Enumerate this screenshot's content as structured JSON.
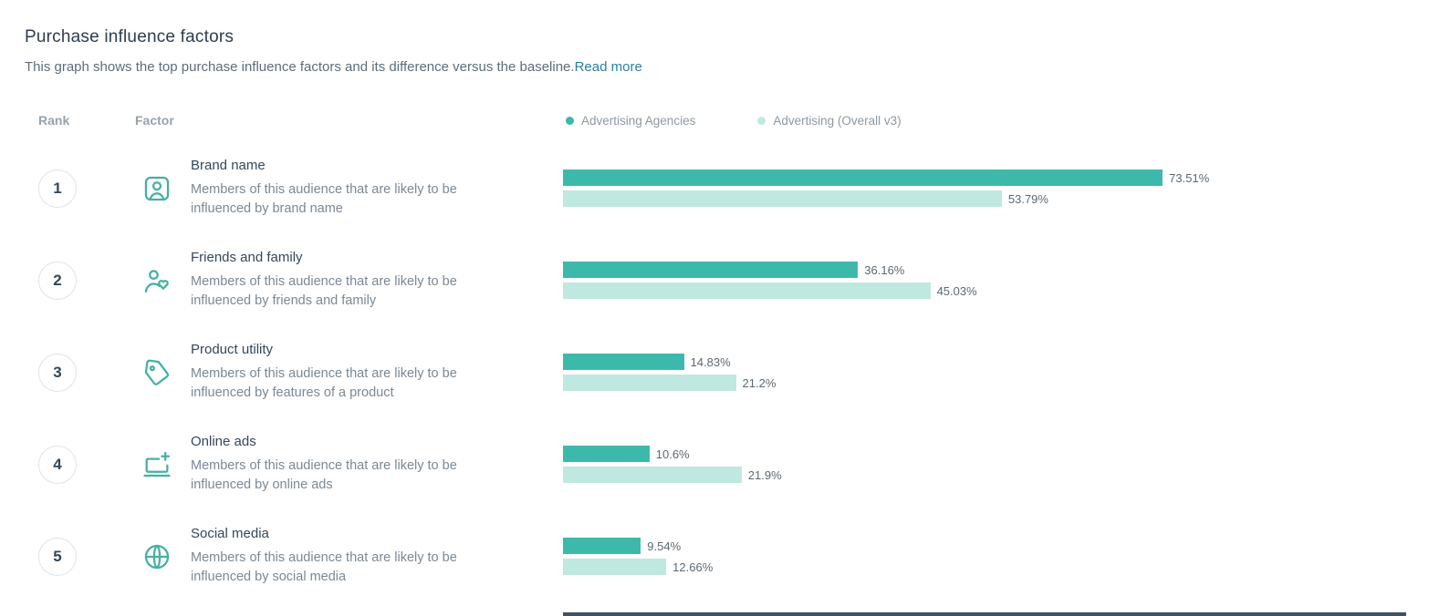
{
  "header": {
    "title": "Purchase influence factors",
    "subtitle": "This graph shows the top purchase influence factors and its difference versus the baseline.",
    "read_more_label": "Read more"
  },
  "columns": {
    "rank": "Rank",
    "factor": "Factor"
  },
  "legend": {
    "items": [
      {
        "label": "Advertising Agencies",
        "color": "#3db9ab"
      },
      {
        "label": "Advertising (Overall v3)",
        "color": "#bfe8e1"
      }
    ]
  },
  "chart_data": {
    "type": "bar",
    "orientation": "horizontal",
    "xlim": [
      0,
      100
    ],
    "series": [
      "Advertising Agencies",
      "Advertising (Overall v3)"
    ],
    "rows": [
      {
        "rank": "1",
        "factor": "Brand name",
        "description": "Members of this audience that are likely to be influenced by brand name",
        "icon": "brand-portrait-icon",
        "values": [
          73.51,
          53.79
        ],
        "value_labels": [
          "73.51%",
          "53.79%"
        ]
      },
      {
        "rank": "2",
        "factor": "Friends and family",
        "description": "Members of this audience that are likely to be influenced by friends and family",
        "icon": "friends-family-icon",
        "values": [
          36.16,
          45.03
        ],
        "value_labels": [
          "36.16%",
          "45.03%"
        ]
      },
      {
        "rank": "3",
        "factor": "Product utility",
        "description": "Members of this audience that are likely to be influenced by features of a product",
        "icon": "price-tag-icon",
        "values": [
          14.83,
          21.2
        ],
        "value_labels": [
          "14.83%",
          "21.2%"
        ]
      },
      {
        "rank": "4",
        "factor": "Online ads",
        "description": "Members of this audience that are likely to be influenced by online ads",
        "icon": "online-ads-icon",
        "values": [
          10.6,
          21.9
        ],
        "value_labels": [
          "10.6%",
          "21.9%"
        ]
      },
      {
        "rank": "5",
        "factor": "Social media",
        "description": "Members of this audience that are likely to be influenced by social media",
        "icon": "social-media-globe-icon",
        "values": [
          9.54,
          12.66
        ],
        "value_labels": [
          "9.54%",
          "12.66%"
        ]
      }
    ]
  },
  "colors": {
    "primary_bar": "#3db9ab",
    "secondary_bar": "#bfe8e1",
    "link": "#2b7fa3"
  }
}
